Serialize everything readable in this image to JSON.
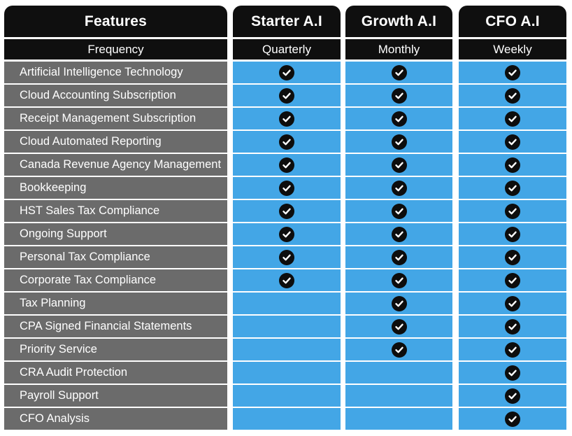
{
  "headers": [
    "Features",
    "Starter A.I",
    "Growth A.I",
    "CFO A.I"
  ],
  "frequency": [
    "Frequency",
    "Quarterly",
    "Monthly",
    "Weekly"
  ],
  "features": [
    {
      "name": "Artificial Intelligence Technology",
      "included": [
        true,
        true,
        true
      ]
    },
    {
      "name": "Cloud Accounting Subscription",
      "included": [
        true,
        true,
        true
      ]
    },
    {
      "name": "Receipt Management Subscription",
      "included": [
        true,
        true,
        true
      ]
    },
    {
      "name": "Cloud Automated Reporting",
      "included": [
        true,
        true,
        true
      ]
    },
    {
      "name": "Canada Revenue Agency Management",
      "included": [
        true,
        true,
        true
      ]
    },
    {
      "name": "Bookkeeping",
      "included": [
        true,
        true,
        true
      ]
    },
    {
      "name": "HST Sales Tax Compliance",
      "included": [
        true,
        true,
        true
      ]
    },
    {
      "name": "Ongoing Support",
      "included": [
        true,
        true,
        true
      ]
    },
    {
      "name": "Personal Tax Compliance",
      "included": [
        true,
        true,
        true
      ]
    },
    {
      "name": "Corporate Tax Compliance",
      "included": [
        true,
        true,
        true
      ]
    },
    {
      "name": "Tax Planning",
      "included": [
        false,
        true,
        true
      ]
    },
    {
      "name": "CPA Signed Financial Statements",
      "included": [
        false,
        true,
        true
      ]
    },
    {
      "name": "Priority Service",
      "included": [
        false,
        true,
        true
      ]
    },
    {
      "name": "CRA Audit Protection",
      "included": [
        false,
        false,
        true
      ]
    },
    {
      "name": "Payroll Support",
      "included": [
        false,
        false,
        true
      ]
    },
    {
      "name": "CFO Analysis",
      "included": [
        false,
        false,
        true
      ]
    }
  ],
  "icon": "checkmark-circle-icon",
  "colors": {
    "header": "#0f0f0f",
    "feature_cell": "#6b6b6b",
    "plan_cell": "#43a6e6",
    "check": "#0d0d0d"
  }
}
